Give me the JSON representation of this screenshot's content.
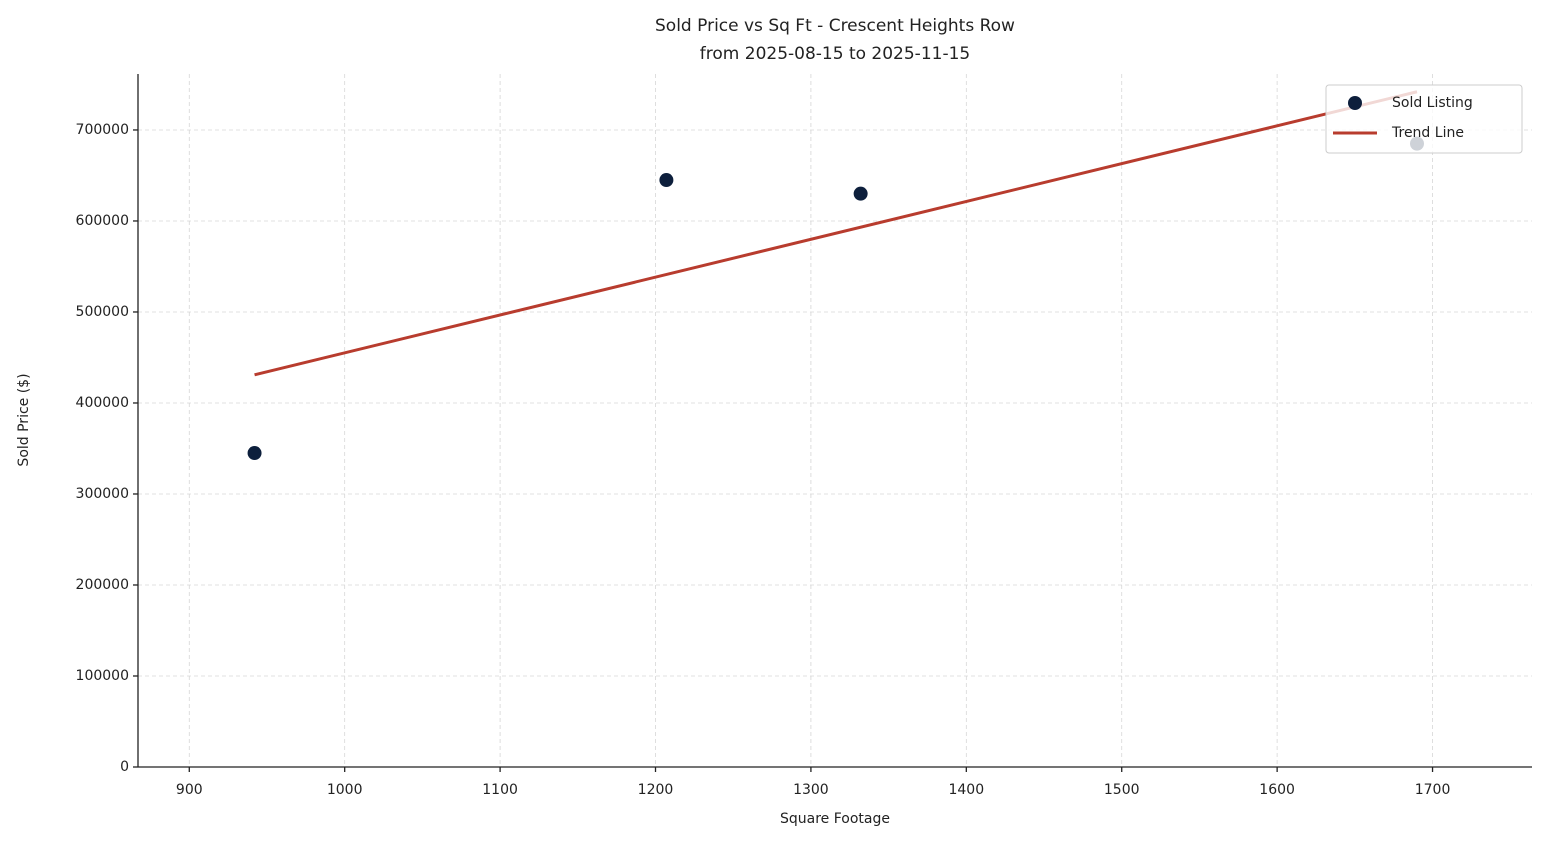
{
  "chart_data": {
    "type": "scatter",
    "title": "Sold Price vs Sq Ft - Crescent Heights Row",
    "subtitle": "from 2025-08-15 to 2025-11-15",
    "x_label": "Square Footage",
    "y_label": "Sold Price ($)",
    "xlim": [
      867,
      1764
    ],
    "ylim": [
      0,
      761500
    ],
    "xticks": [
      900,
      1000,
      1100,
      1200,
      1300,
      1400,
      1500,
      1600,
      1700
    ],
    "yticks": [
      0,
      100000,
      200000,
      300000,
      400000,
      500000,
      600000,
      700000
    ],
    "grid": true,
    "legend": "upper right",
    "series": [
      {
        "name": "Sold Listing",
        "kind": "points",
        "color": "#0d1f3c",
        "x": [
          942,
          1207,
          1332,
          1690
        ],
        "values": [
          345000,
          645000,
          630000,
          685000
        ]
      },
      {
        "name": "Trend Line",
        "kind": "line",
        "color": "#b83c2e",
        "x": [
          942,
          1690
        ],
        "values": [
          431000,
          742000
        ]
      }
    ]
  }
}
